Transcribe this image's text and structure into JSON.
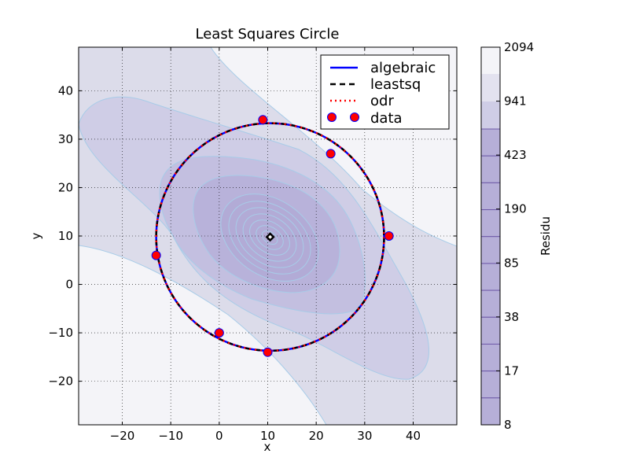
{
  "chart_data": {
    "type": "contour",
    "title": "Least Squares Circle",
    "xlabel": "x",
    "ylabel": "y",
    "xlim": [
      -29,
      49
    ],
    "ylim": [
      -29,
      49
    ],
    "xticks": [
      -20,
      -10,
      0,
      10,
      20,
      30,
      40
    ],
    "yticks": [
      -20,
      -10,
      0,
      10,
      20,
      30,
      40
    ],
    "grid": true,
    "legend_position": "upper right",
    "legend": [
      {
        "label": "algebraic",
        "style": "solid",
        "color": "#0000ff"
      },
      {
        "label": "leastsq",
        "style": "dashed",
        "color": "#000000"
      },
      {
        "label": "odr",
        "style": "dotted",
        "color": "#ff0000"
      },
      {
        "label": "data",
        "style": "markers",
        "color": "#ff0000"
      }
    ],
    "fitted_circle": {
      "center": [
        10.5,
        9.8
      ],
      "radius": 23.5
    },
    "data_points": [
      {
        "x": 9,
        "y": 34
      },
      {
        "x": 23,
        "y": 27
      },
      {
        "x": 35,
        "y": 10
      },
      {
        "x": -13,
        "y": 6
      },
      {
        "x": 0,
        "y": -10
      },
      {
        "x": 10,
        "y": -14
      }
    ],
    "center_marker": {
      "x": 10.5,
      "y": 9.8
    },
    "colorbar": {
      "label": "Residu",
      "tick_labels": [
        "2094",
        "941",
        "423",
        "190",
        "85",
        "38",
        "17",
        "8"
      ],
      "levels": [
        2094,
        941,
        423,
        190,
        85,
        38,
        17,
        8
      ]
    }
  }
}
